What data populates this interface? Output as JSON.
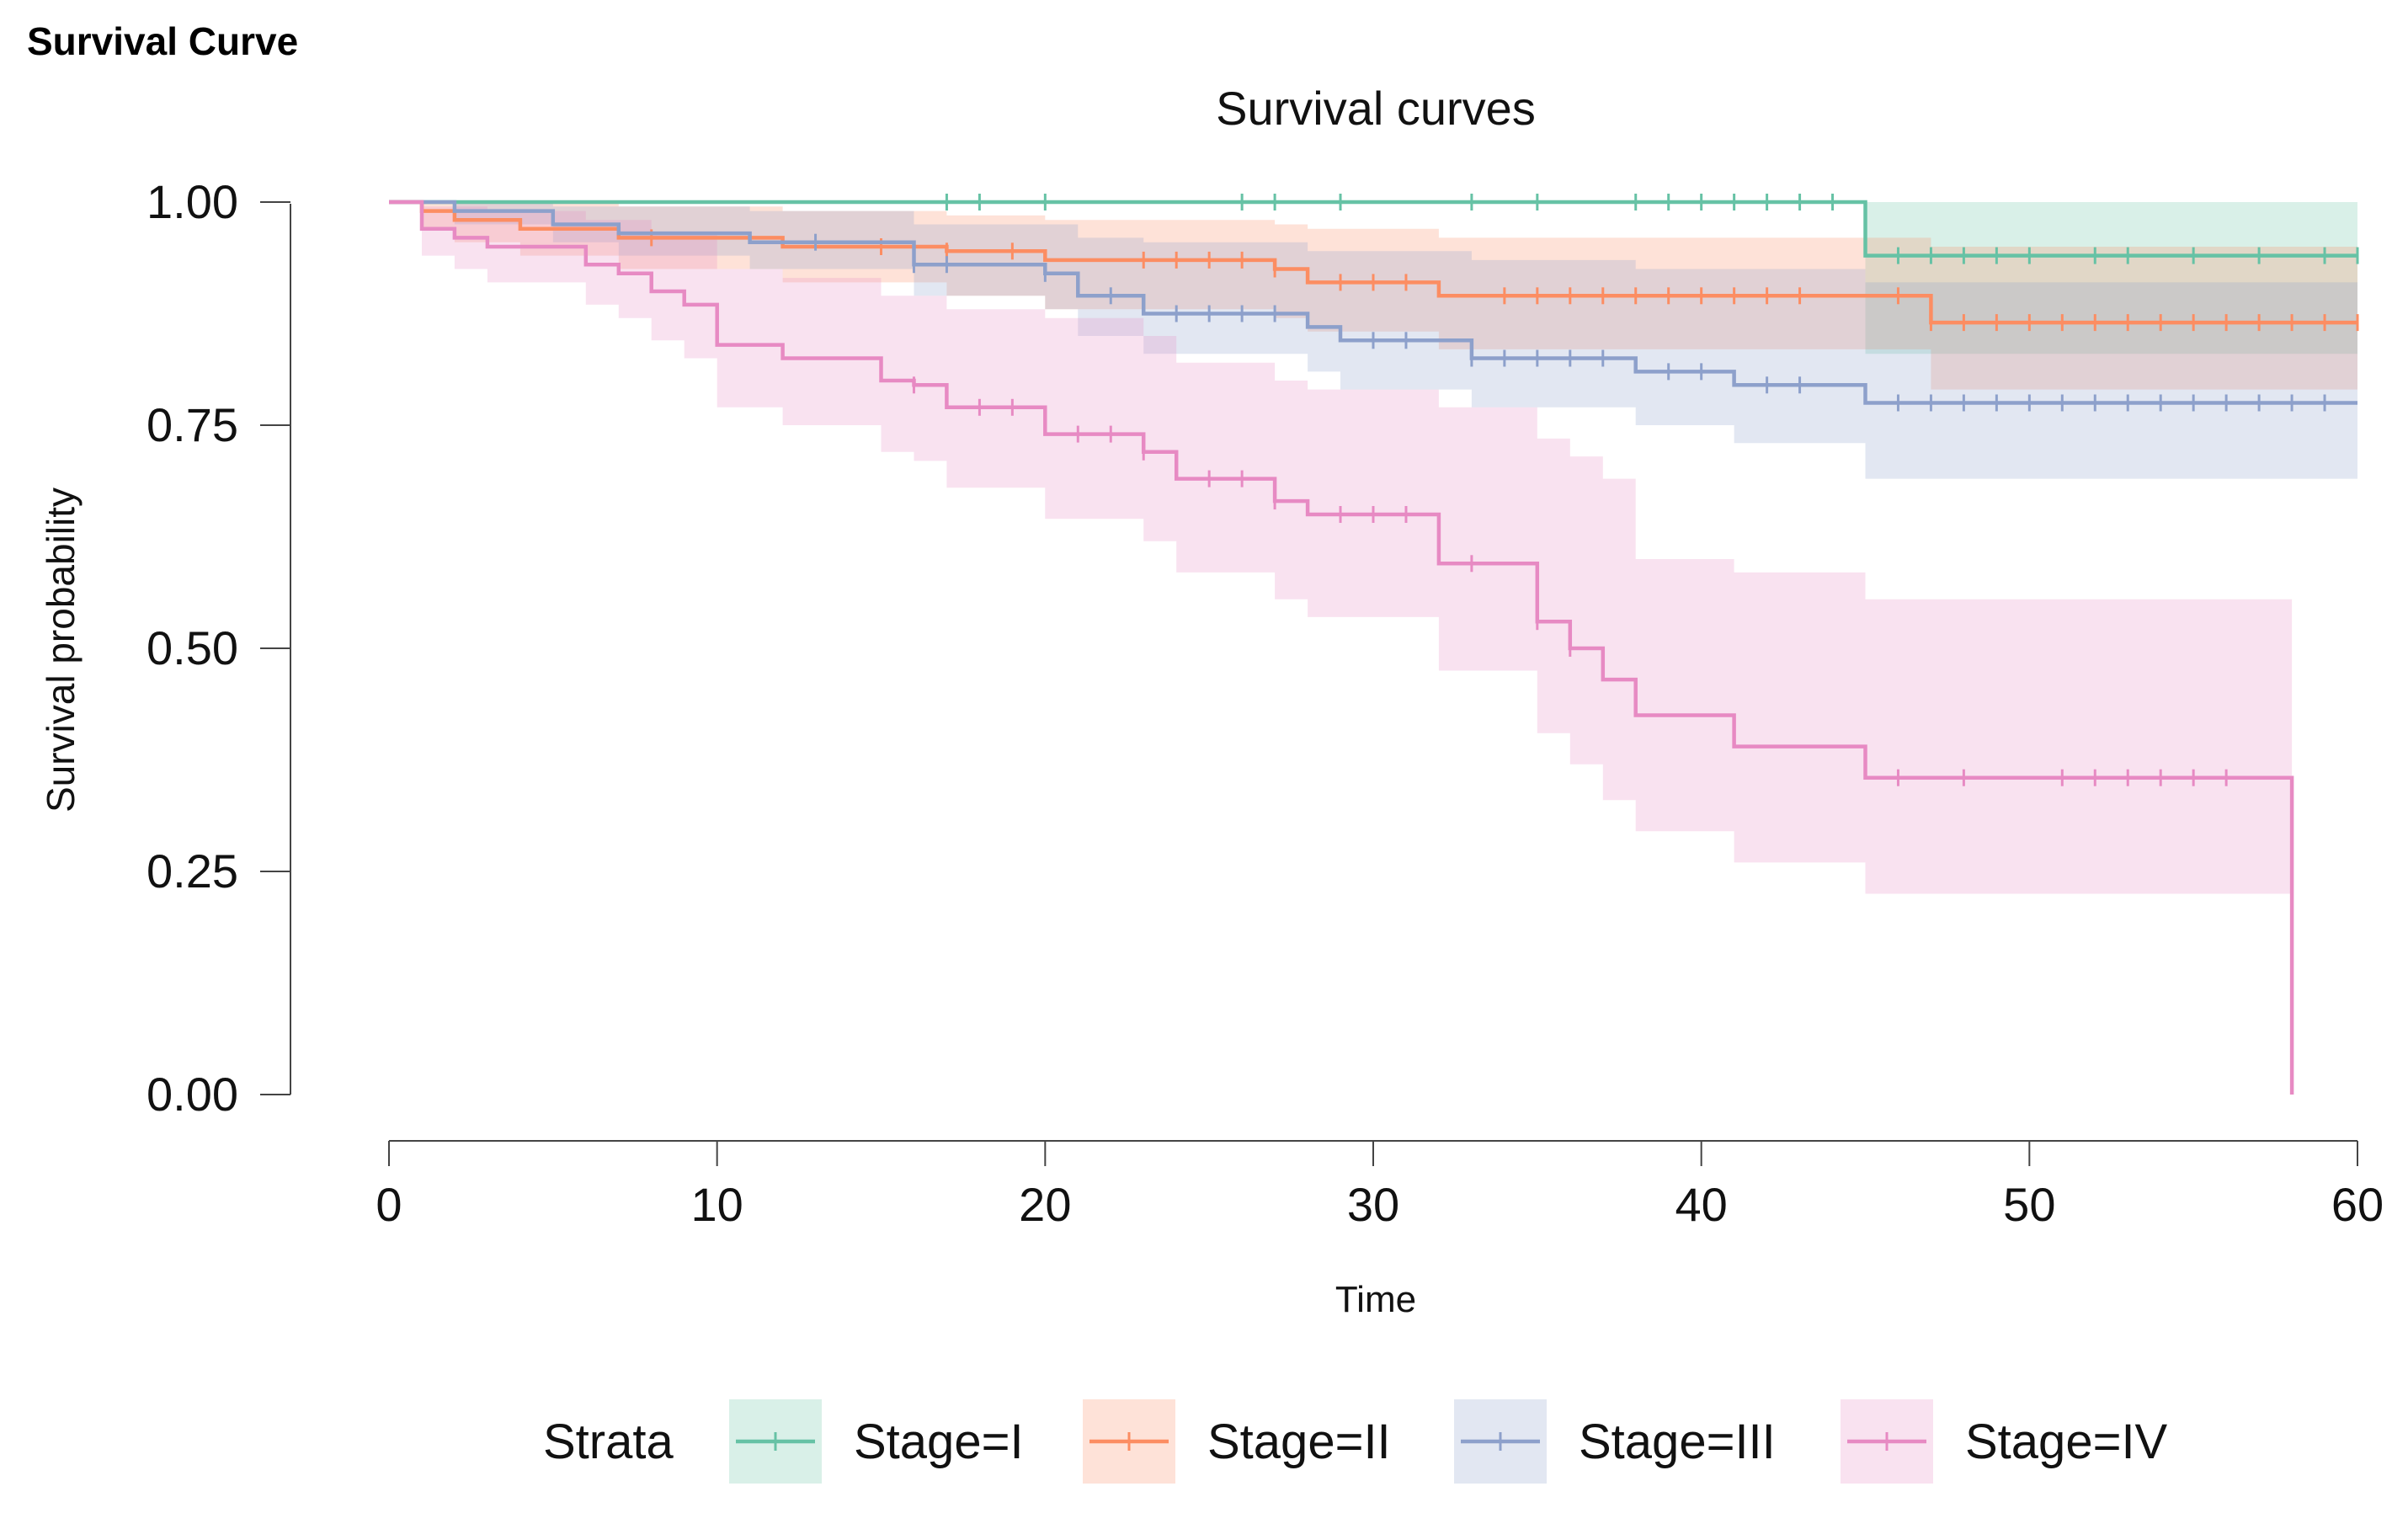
{
  "page": {
    "header": "Survival Curve"
  },
  "chart_data": {
    "type": "line",
    "subtype": "kaplan-meier-step",
    "title": "Survival curves",
    "xlabel": "Time",
    "ylabel": "Survival probability",
    "xlim": [
      0,
      60
    ],
    "ylim": [
      0,
      1
    ],
    "xticks": [
      0,
      10,
      20,
      30,
      40,
      50,
      60
    ],
    "yticks": [
      0,
      0.25,
      0.5,
      0.75,
      1.0
    ],
    "yticklabels": [
      "0.00",
      "0.25",
      "0.50",
      "0.75",
      "1.00"
    ],
    "legend": {
      "title": "Strata",
      "position": "bottom"
    },
    "series": [
      {
        "name": "Stage=I",
        "color": "#66c2a5",
        "fill": "#66c2a5",
        "steps": [
          [
            0,
            1.0
          ],
          [
            45,
            0.94
          ],
          [
            60,
            0.94
          ]
        ],
        "lower": [
          [
            0,
            1.0
          ],
          [
            45,
            0.83
          ],
          [
            60,
            0.83
          ]
        ],
        "upper": [
          [
            0,
            1.0
          ],
          [
            45,
            1.0
          ],
          [
            60,
            1.0
          ]
        ],
        "censor": [
          17,
          18,
          20,
          26,
          27,
          29,
          33,
          35,
          38,
          39,
          40,
          41,
          42,
          43,
          44,
          46,
          47,
          48,
          49,
          50,
          52,
          53,
          55,
          57,
          59,
          60
        ]
      },
      {
        "name": "Stage=II",
        "color": "#fc8d62",
        "fill": "#fc8d62",
        "steps": [
          [
            0,
            1.0
          ],
          [
            1,
            0.99
          ],
          [
            2,
            0.98
          ],
          [
            4,
            0.97
          ],
          [
            7,
            0.96
          ],
          [
            12,
            0.95
          ],
          [
            17,
            0.945
          ],
          [
            20,
            0.935
          ],
          [
            27,
            0.925
          ],
          [
            28,
            0.91
          ],
          [
            32,
            0.895
          ],
          [
            47,
            0.865
          ],
          [
            60,
            0.865
          ]
        ],
        "lower": [
          [
            0,
            1.0
          ],
          [
            1,
            0.97
          ],
          [
            2,
            0.955
          ],
          [
            4,
            0.94
          ],
          [
            7,
            0.925
          ],
          [
            12,
            0.91
          ],
          [
            17,
            0.895
          ],
          [
            20,
            0.88
          ],
          [
            27,
            0.87
          ],
          [
            28,
            0.855
          ],
          [
            32,
            0.835
          ],
          [
            47,
            0.79
          ],
          [
            60,
            0.79
          ]
        ],
        "upper": [
          [
            0,
            1.0
          ],
          [
            1,
            1.0
          ],
          [
            7,
            0.995
          ],
          [
            12,
            0.99
          ],
          [
            17,
            0.985
          ],
          [
            20,
            0.98
          ],
          [
            27,
            0.975
          ],
          [
            28,
            0.97
          ],
          [
            32,
            0.96
          ],
          [
            47,
            0.95
          ],
          [
            60,
            0.95
          ]
        ],
        "censor": [
          8,
          15,
          17,
          19,
          23,
          24,
          25,
          26,
          27,
          29,
          30,
          31,
          34,
          35,
          36,
          37,
          38,
          39,
          40,
          41,
          42,
          43,
          46,
          47,
          48,
          49,
          50,
          51,
          52,
          53,
          54,
          55,
          56,
          57,
          58,
          59,
          60
        ]
      },
      {
        "name": "Stage=III",
        "color": "#8da0cb",
        "fill": "#8da0cb",
        "steps": [
          [
            0,
            1.0
          ],
          [
            2,
            0.99
          ],
          [
            5,
            0.975
          ],
          [
            7,
            0.965
          ],
          [
            11,
            0.955
          ],
          [
            16,
            0.93
          ],
          [
            20,
            0.92
          ],
          [
            21,
            0.895
          ],
          [
            23,
            0.875
          ],
          [
            28,
            0.86
          ],
          [
            29,
            0.845
          ],
          [
            33,
            0.825
          ],
          [
            38,
            0.81
          ],
          [
            41,
            0.795
          ],
          [
            45,
            0.775
          ],
          [
            60,
            0.775
          ]
        ],
        "lower": [
          [
            0,
            1.0
          ],
          [
            2,
            0.975
          ],
          [
            5,
            0.955
          ],
          [
            7,
            0.94
          ],
          [
            11,
            0.925
          ],
          [
            16,
            0.895
          ],
          [
            20,
            0.88
          ],
          [
            21,
            0.85
          ],
          [
            23,
            0.83
          ],
          [
            28,
            0.81
          ],
          [
            29,
            0.79
          ],
          [
            33,
            0.77
          ],
          [
            38,
            0.75
          ],
          [
            41,
            0.73
          ],
          [
            45,
            0.69
          ],
          [
            60,
            0.69
          ]
        ],
        "upper": [
          [
            0,
            1.0
          ],
          [
            5,
            0.995
          ],
          [
            11,
            0.99
          ],
          [
            16,
            0.975
          ],
          [
            21,
            0.96
          ],
          [
            23,
            0.955
          ],
          [
            28,
            0.945
          ],
          [
            33,
            0.935
          ],
          [
            38,
            0.925
          ],
          [
            45,
            0.91
          ],
          [
            60,
            0.91
          ]
        ],
        "censor": [
          13,
          16,
          17,
          20,
          22,
          24,
          25,
          26,
          27,
          30,
          31,
          33,
          34,
          35,
          36,
          37,
          39,
          40,
          42,
          43,
          46,
          47,
          48,
          49,
          50,
          51,
          52,
          53,
          54,
          55,
          56,
          57,
          58,
          59
        ]
      },
      {
        "name": "Stage=IV",
        "color": "#e78ac3",
        "fill": "#e78ac3",
        "steps": [
          [
            0,
            1.0
          ],
          [
            1,
            0.97
          ],
          [
            2,
            0.96
          ],
          [
            3,
            0.95
          ],
          [
            6,
            0.93
          ],
          [
            7,
            0.92
          ],
          [
            8,
            0.9
          ],
          [
            9,
            0.885
          ],
          [
            10,
            0.84
          ],
          [
            12,
            0.825
          ],
          [
            15,
            0.8
          ],
          [
            16,
            0.795
          ],
          [
            17,
            0.77
          ],
          [
            20,
            0.74
          ],
          [
            23,
            0.72
          ],
          [
            24,
            0.69
          ],
          [
            27,
            0.665
          ],
          [
            28,
            0.65
          ],
          [
            32,
            0.595
          ],
          [
            35,
            0.53
          ],
          [
            36,
            0.5
          ],
          [
            37,
            0.465
          ],
          [
            38,
            0.425
          ],
          [
            41,
            0.39
          ],
          [
            45,
            0.355
          ],
          [
            58,
            0.0
          ]
        ],
        "lower": [
          [
            0,
            1.0
          ],
          [
            1,
            0.94
          ],
          [
            2,
            0.925
          ],
          [
            3,
            0.91
          ],
          [
            6,
            0.885
          ],
          [
            7,
            0.87
          ],
          [
            8,
            0.845
          ],
          [
            9,
            0.825
          ],
          [
            10,
            0.77
          ],
          [
            12,
            0.75
          ],
          [
            15,
            0.72
          ],
          [
            16,
            0.71
          ],
          [
            17,
            0.68
          ],
          [
            20,
            0.645
          ],
          [
            23,
            0.62
          ],
          [
            24,
            0.585
          ],
          [
            27,
            0.555
          ],
          [
            28,
            0.535
          ],
          [
            32,
            0.475
          ],
          [
            35,
            0.405
          ],
          [
            36,
            0.37
          ],
          [
            37,
            0.33
          ],
          [
            38,
            0.295
          ],
          [
            41,
            0.26
          ],
          [
            45,
            0.225
          ],
          [
            58,
            0.225
          ]
        ],
        "upper": [
          [
            0,
            1.0
          ],
          [
            1,
            0.995
          ],
          [
            3,
            0.99
          ],
          [
            6,
            0.98
          ],
          [
            8,
            0.965
          ],
          [
            10,
            0.925
          ],
          [
            12,
            0.915
          ],
          [
            15,
            0.895
          ],
          [
            17,
            0.88
          ],
          [
            20,
            0.87
          ],
          [
            23,
            0.85
          ],
          [
            24,
            0.82
          ],
          [
            27,
            0.8
          ],
          [
            28,
            0.79
          ],
          [
            32,
            0.77
          ],
          [
            35,
            0.735
          ],
          [
            36,
            0.715
          ],
          [
            37,
            0.69
          ],
          [
            38,
            0.6
          ],
          [
            41,
            0.585
          ],
          [
            45,
            0.555
          ],
          [
            58,
            0.555
          ]
        ],
        "censor": [
          16,
          18,
          19,
          21,
          22,
          23,
          25,
          26,
          27,
          29,
          30,
          31,
          33,
          35,
          36,
          46,
          48,
          51,
          52,
          53,
          54,
          55,
          56
        ]
      }
    ]
  }
}
